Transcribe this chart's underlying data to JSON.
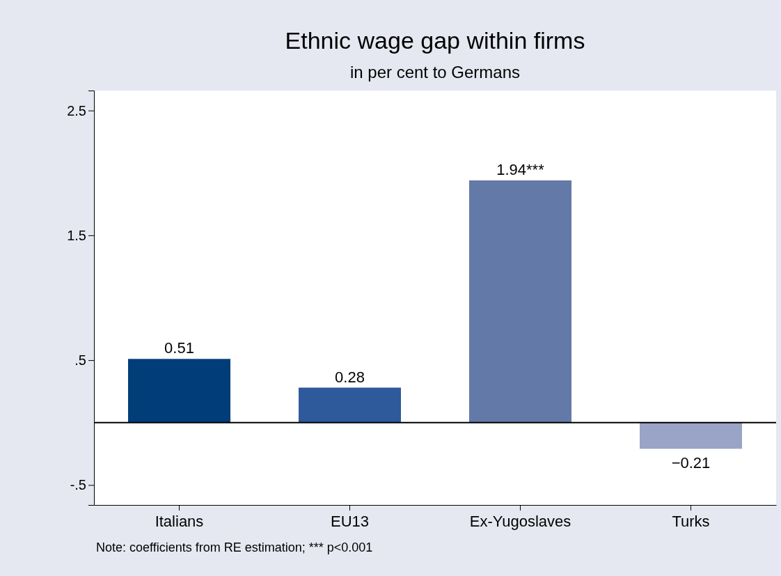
{
  "chart_data": {
    "type": "bar",
    "title": "Ethnic wage gap within firms",
    "subtitle": "in per cent to Germans",
    "categories": [
      "Italians",
      "EU13",
      "Ex-Yugoslaves",
      "Turks"
    ],
    "values": [
      0.51,
      0.28,
      1.94,
      -0.21
    ],
    "colors": [
      "#003d79",
      "#2e5a9c",
      "#6379a8",
      "#99a4c6"
    ],
    "value_labels": [
      "0.51",
      "0.28",
      "1.94***",
      "−0.21"
    ],
    "ylim": [
      -0.66,
      2.66
    ],
    "yticks": [
      {
        "value": -0.5,
        "label": "-.5"
      },
      {
        "value": 0.5,
        "label": ".5"
      },
      1.5,
      2.5
    ],
    "ref_lines": [
      {
        "axis": "y",
        "value": 0,
        "color": "#000000"
      }
    ],
    "grid": false,
    "annotations": [
      "Note: coefficients from RE estimation; *** p<0.001"
    ]
  }
}
